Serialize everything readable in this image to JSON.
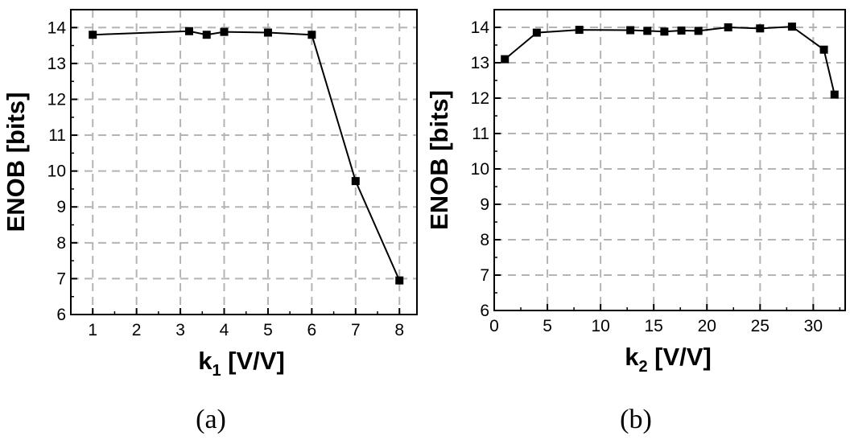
{
  "chart_data": [
    {
      "type": "line",
      "caption": "(a)",
      "xlabel_main": "k",
      "xlabel_sub": "1",
      "xlabel_unit": " [V/V]",
      "ylabel": "ENOB [bits]",
      "xlim": [
        0.5,
        8.4
      ],
      "ylim": [
        6,
        14.5
      ],
      "xticks": [
        1,
        2,
        3,
        4,
        5,
        6,
        7,
        8
      ],
      "yticks": [
        6,
        7,
        8,
        9,
        10,
        11,
        12,
        13,
        14
      ],
      "grid": true,
      "marker": "square",
      "series": [
        {
          "x": [
            1,
            3.2,
            3.6,
            4,
            5,
            6,
            7,
            8
          ],
          "y": [
            13.8,
            13.9,
            13.8,
            13.88,
            13.86,
            13.8,
            9.72,
            6.95
          ]
        }
      ]
    },
    {
      "type": "line",
      "caption": "(b)",
      "xlabel_main": "k",
      "xlabel_sub": "2",
      "xlabel_unit": " [V/V]",
      "ylabel": "ENOB [bits]",
      "xlim": [
        0,
        33
      ],
      "ylim": [
        6,
        14.5
      ],
      "xticks": [
        0,
        5,
        10,
        15,
        20,
        25,
        30
      ],
      "yticks": [
        6,
        7,
        8,
        9,
        10,
        11,
        12,
        13,
        14
      ],
      "grid": true,
      "marker": "square",
      "series": [
        {
          "x": [
            1,
            4,
            8,
            12.8,
            14.4,
            16,
            17.6,
            19.2,
            22,
            25,
            28,
            31,
            32
          ],
          "y": [
            13.1,
            13.85,
            13.93,
            13.92,
            13.9,
            13.88,
            13.91,
            13.9,
            14.0,
            13.97,
            14.02,
            13.37,
            12.1
          ]
        }
      ]
    }
  ]
}
